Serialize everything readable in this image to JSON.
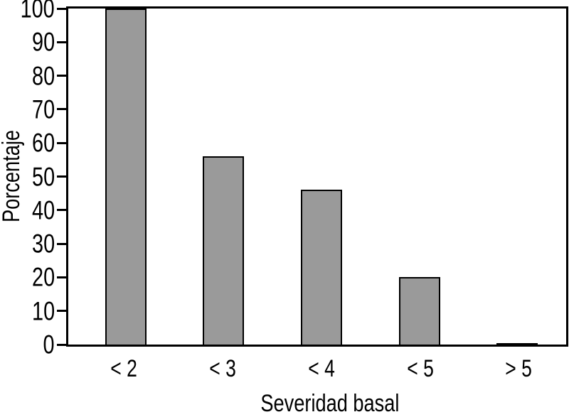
{
  "figure": {
    "xlabel": "Severidad basal",
    "ylabel": "Porcentaje"
  },
  "chart_data": {
    "type": "bar",
    "categories": [
      "< 2",
      "< 3",
      "< 4",
      "< 5",
      "> 5"
    ],
    "values": [
      100,
      56,
      46,
      20,
      0
    ],
    "title": "",
    "xlabel": "Severidad basal",
    "ylabel": "Porcentaje",
    "ylim": [
      0,
      100
    ],
    "yticks": [
      0,
      10,
      20,
      30,
      40,
      50,
      60,
      70,
      80,
      90,
      100
    ],
    "grid": false,
    "legend": false,
    "bar_fill_color": "#9a9a9a",
    "bar_border_color": "#000000",
    "axis_color": "#000000",
    "background_color": "#ffffff"
  }
}
